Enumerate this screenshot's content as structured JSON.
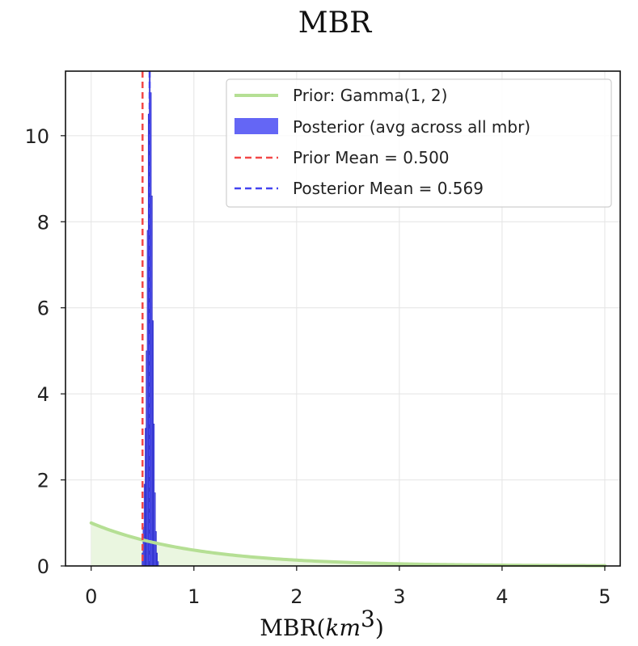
{
  "chart_data": {
    "type": "histogram",
    "title": "MBR",
    "xlabel": "MBR",
    "xlabel_unit": "km",
    "xlabel_unit_exp": "3",
    "ylabel": "",
    "xlim": [
      -0.25,
      5.15
    ],
    "ylim": [
      0,
      11.5
    ],
    "xticks": [
      "0",
      "1",
      "2",
      "3",
      "4",
      "5"
    ],
    "yticks": [
      "0",
      "2",
      "4",
      "6",
      "8",
      "10"
    ],
    "grid": true,
    "legend_position": "top-right",
    "series": [
      {
        "name": "Prior: Gamma(1, 2)",
        "kind": "line",
        "color": "#b5df94",
        "fill_color": "#eaf6e0",
        "x": [
          0,
          0.25,
          0.5,
          0.75,
          1,
          1.5,
          2,
          2.5,
          3,
          3.5,
          4,
          4.5,
          5
        ],
        "y": [
          1.0,
          0.779,
          0.607,
          0.472,
          0.368,
          0.223,
          0.135,
          0.082,
          0.05,
          0.03,
          0.018,
          0.011,
          0.007
        ]
      },
      {
        "name": "Posterior (avg across all mbr)",
        "kind": "histogram",
        "color": "#6466f5",
        "edge_color": "#2020c0",
        "bin_centers": [
          0.5,
          0.51,
          0.52,
          0.53,
          0.54,
          0.55,
          0.56,
          0.57,
          0.58,
          0.59,
          0.6,
          0.61,
          0.62,
          0.63,
          0.64,
          0.65
        ],
        "values": [
          0.3,
          0.9,
          1.9,
          3.2,
          5.0,
          7.8,
          10.5,
          11.5,
          11.0,
          8.6,
          5.7,
          3.3,
          1.7,
          0.8,
          0.3,
          0.1
        ]
      },
      {
        "name": "Prior Mean = 0.500",
        "kind": "vline",
        "x": 0.5,
        "color": "#f24848"
      },
      {
        "name": "Posterior Mean = 0.569",
        "kind": "vline",
        "x": 0.569,
        "color": "#4343f0"
      }
    ]
  }
}
